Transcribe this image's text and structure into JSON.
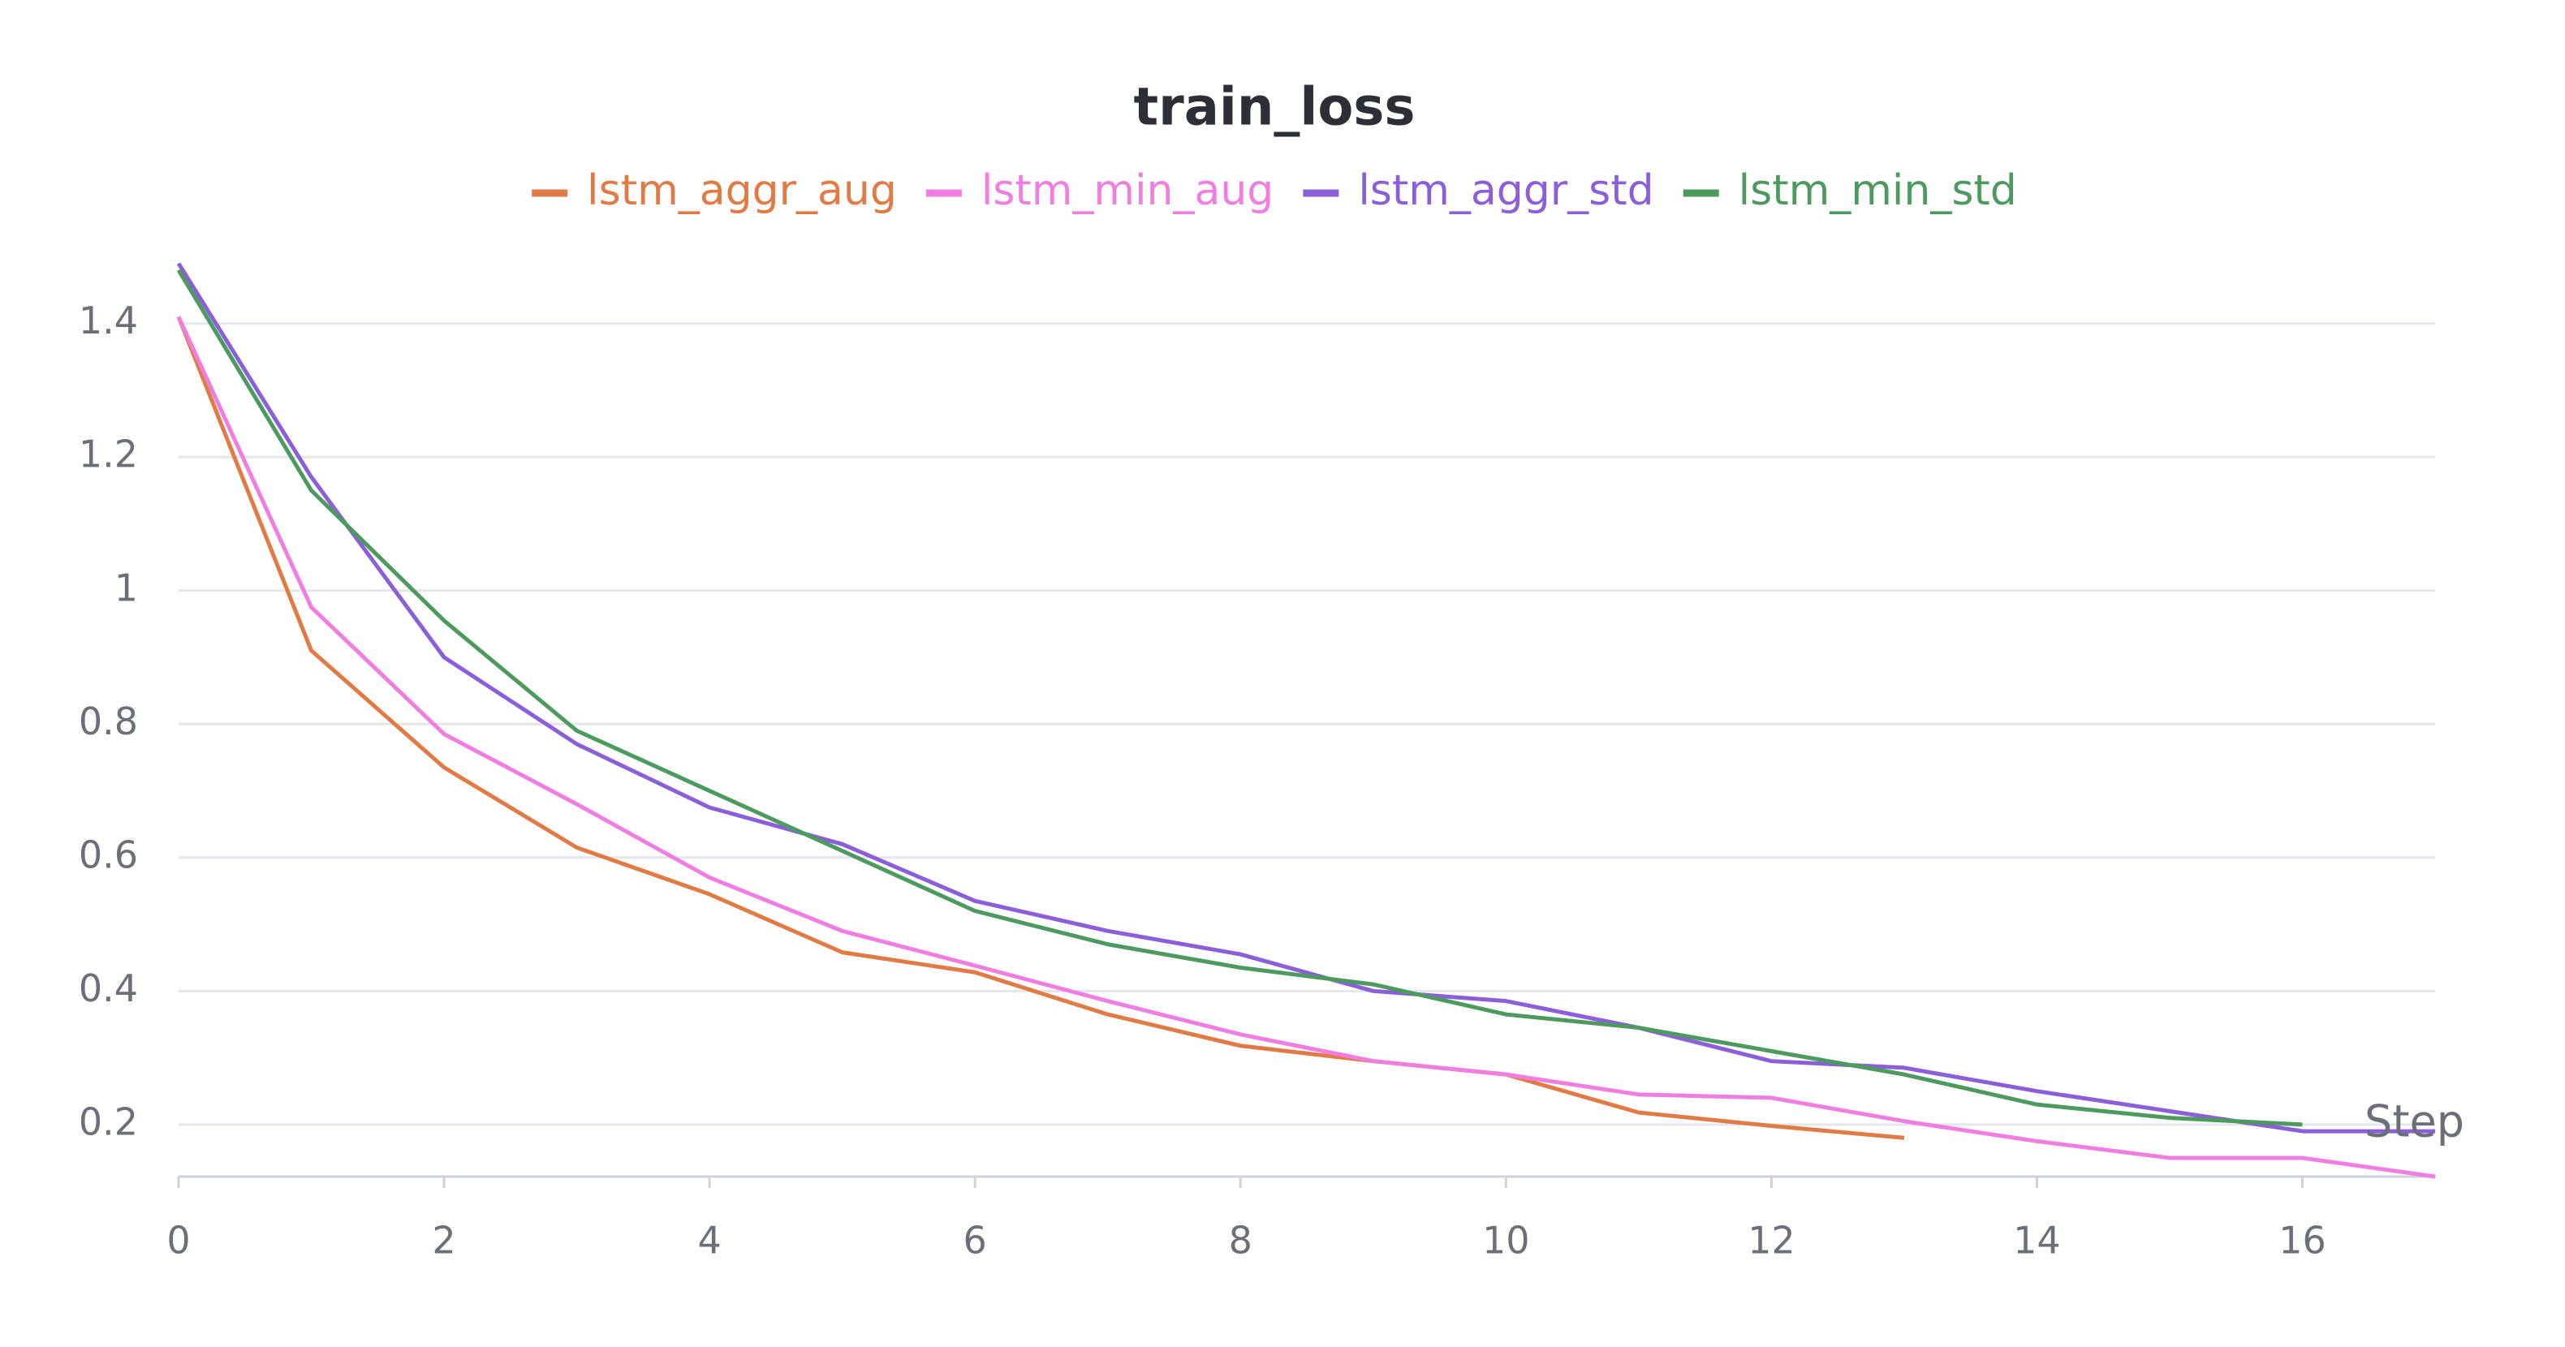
{
  "chart_data": {
    "type": "line",
    "title": "train_loss",
    "x_label": "Step",
    "x": [
      0,
      1,
      2,
      3,
      4,
      5,
      6,
      7,
      8,
      9,
      10,
      11,
      12,
      13,
      14,
      15,
      16,
      17
    ],
    "series": [
      {
        "name": "lstm_aggr_aug",
        "color": "#e07b45",
        "values": [
          1.41,
          0.91,
          0.735,
          0.615,
          0.545,
          0.458,
          0.428,
          0.365,
          0.318,
          0.295,
          0.275,
          0.218,
          0.198,
          0.18,
          null,
          null,
          null,
          null
        ]
      },
      {
        "name": "lstm_min_aug",
        "color": "#f07ee0",
        "values": [
          1.41,
          0.975,
          0.785,
          0.68,
          0.57,
          0.49,
          0.438,
          0.385,
          0.335,
          0.295,
          0.275,
          0.245,
          0.24,
          0.205,
          0.175,
          0.15,
          0.15,
          0.122
        ]
      },
      {
        "name": "lstm_aggr_std",
        "color": "#8a5fd8",
        "values": [
          1.49,
          1.17,
          0.9,
          0.77,
          0.675,
          0.62,
          0.535,
          0.49,
          0.455,
          0.4,
          0.385,
          0.345,
          0.295,
          0.285,
          0.25,
          0.22,
          0.19,
          0.19
        ]
      },
      {
        "name": "lstm_min_std",
        "color": "#4c9a5e",
        "values": [
          1.48,
          1.15,
          0.955,
          0.79,
          0.7,
          0.61,
          0.52,
          0.47,
          0.435,
          0.41,
          0.365,
          0.345,
          0.31,
          0.275,
          0.23,
          0.21,
          0.2,
          null
        ]
      }
    ],
    "xlim": [
      0,
      17
    ],
    "xticks": [
      0,
      2,
      4,
      6,
      8,
      10,
      12,
      14,
      16
    ],
    "ylim": [
      0.122,
      1.52
    ],
    "yticks": [
      0.2,
      0.4,
      0.6,
      0.8,
      1,
      1.2,
      1.4
    ],
    "grid": true
  }
}
